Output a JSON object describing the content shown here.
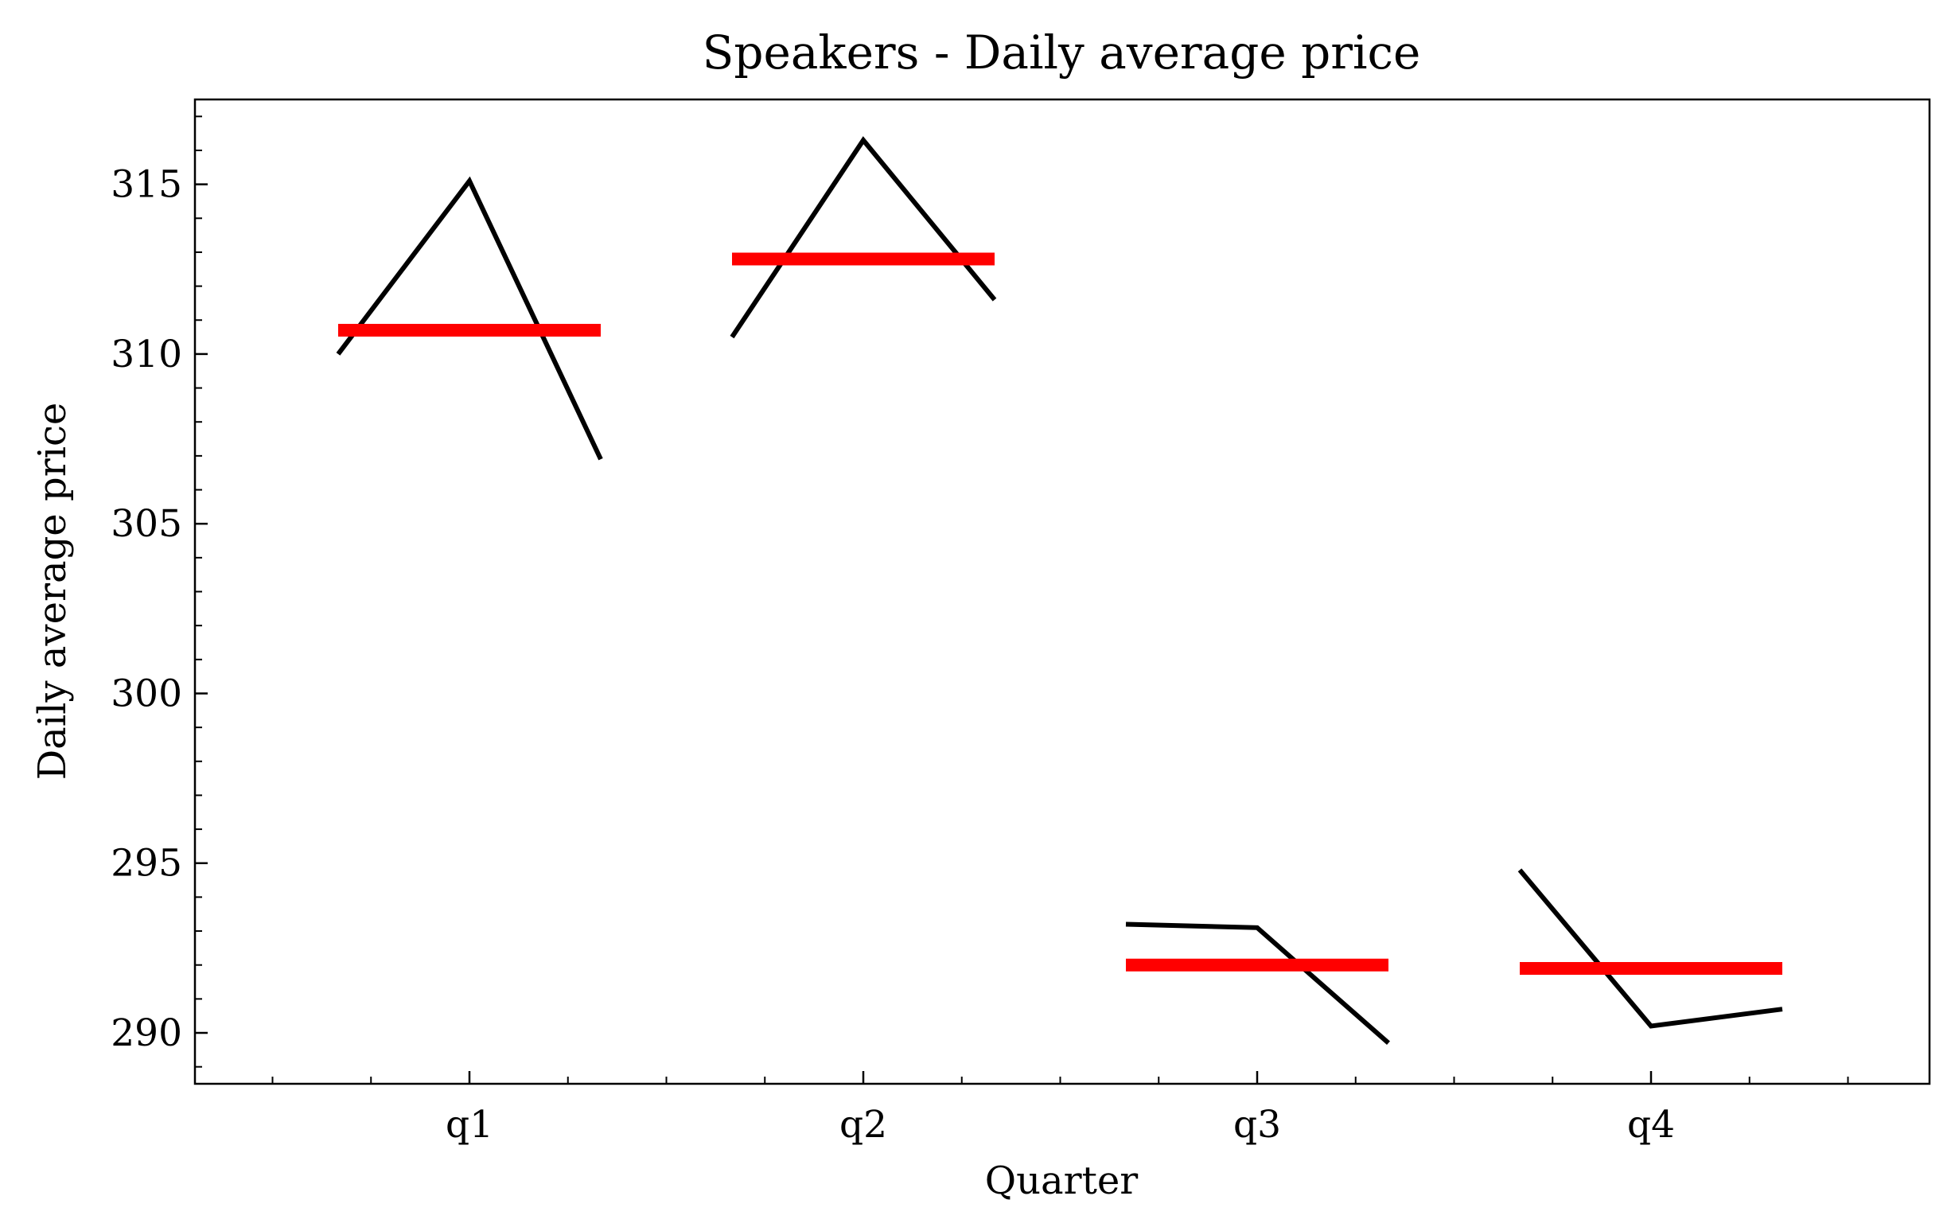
{
  "chart_data": {
    "type": "line",
    "title": "Speakers - Daily average price",
    "xlabel": "Quarter",
    "ylabel": "Daily average price",
    "categories": [
      "q1",
      "q2",
      "q3",
      "q4"
    ],
    "ylim": [
      288.5,
      317.5
    ],
    "yticks": [
      "290",
      "295",
      "300",
      "305",
      "310",
      "315"
    ],
    "grid": false,
    "colors": {
      "line": "#000000",
      "mean": "#ff0000"
    },
    "groups": [
      {
        "category": "q1",
        "values": [
          310.0,
          315.1,
          306.9
        ],
        "mean": 310.7
      },
      {
        "category": "q2",
        "values": [
          310.5,
          316.3,
          311.6
        ],
        "mean": 312.8
      },
      {
        "category": "q3",
        "values": [
          293.2,
          293.1,
          289.7
        ],
        "mean": 292.0
      },
      {
        "category": "q4",
        "values": [
          294.8,
          290.2,
          290.7
        ],
        "mean": 291.9
      }
    ]
  }
}
